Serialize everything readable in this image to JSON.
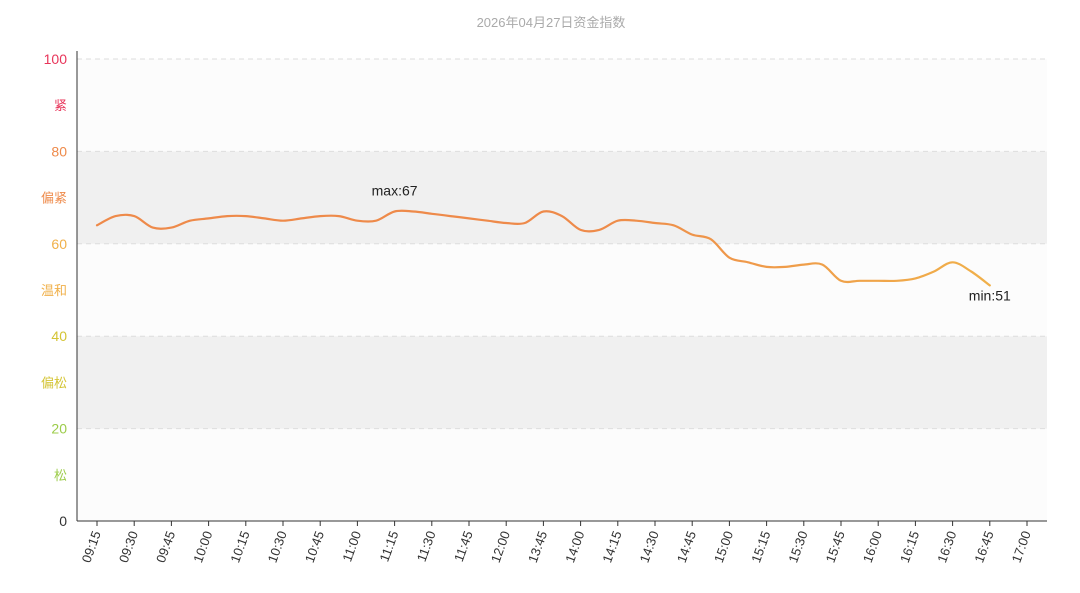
{
  "chart_data": {
    "type": "line",
    "title": "2026年04月27日资金指数",
    "xlabel": "",
    "ylabel": "",
    "ylim": [
      0,
      100
    ],
    "y_ticks": [
      "0",
      "20",
      "40",
      "60",
      "80",
      "100"
    ],
    "y_tick_colors": [
      "#333333",
      "#9ccc4a",
      "#d4c434",
      "#f0b04a",
      "#ee8a4a",
      "#e8355a"
    ],
    "zones": [
      {
        "label": "松",
        "from": 0,
        "to": 20,
        "color": "#9ccc4a",
        "band": "#fcfcfc"
      },
      {
        "label": "偏松",
        "from": 20,
        "to": 40,
        "color": "#d4c434",
        "band": "#f0f0f0"
      },
      {
        "label": "温和",
        "from": 40,
        "to": 60,
        "color": "#f0b04a",
        "band": "#fcfcfc"
      },
      {
        "label": "偏紧",
        "from": 60,
        "to": 80,
        "color": "#ee8a4a",
        "band": "#f0f0f0"
      },
      {
        "label": "紧",
        "from": 80,
        "to": 100,
        "color": "#e8355a",
        "band": "#fcfcfc"
      }
    ],
    "x_ticks": [
      "09:15",
      "09:30",
      "09:45",
      "10:00",
      "10:15",
      "10:30",
      "10:45",
      "11:00",
      "11:15",
      "11:30",
      "11:45",
      "12:00",
      "13:45",
      "14:00",
      "14:15",
      "14:30",
      "14:45",
      "15:00",
      "15:15",
      "15:30",
      "15:45",
      "16:00",
      "16:15",
      "16:30",
      "16:45",
      "17:00"
    ],
    "grid": true,
    "line_colors": [
      "#ee8a4a",
      "#f0b04a"
    ],
    "series": [
      {
        "x": [
          0,
          0.5,
          1,
          1.5,
          2,
          2.5,
          3,
          3.5,
          4,
          4.5,
          5,
          5.5,
          6,
          6.5,
          7,
          7.5,
          8,
          8.5,
          9,
          9.5,
          10,
          10.5,
          11,
          11.5,
          12,
          12.5,
          13,
          13.5,
          14,
          14.5,
          15,
          15.5,
          16,
          16.5,
          17,
          17.5,
          18,
          18.5,
          19,
          19.5,
          20,
          20.5,
          21,
          21.5,
          22,
          22.5,
          23,
          23.5,
          24
        ],
        "values": [
          64,
          66,
          66,
          63.5,
          63.5,
          65,
          65.5,
          66,
          66,
          65.5,
          65,
          65.5,
          66,
          66,
          65,
          65,
          67,
          67,
          66.5,
          66,
          65.5,
          65,
          64.5,
          64.5,
          67,
          66,
          63,
          63,
          65,
          65,
          64.5,
          64,
          62,
          61,
          57,
          56,
          55,
          55,
          55.5,
          55.5,
          52,
          52,
          52,
          52,
          52.5,
          54,
          56,
          54,
          51
        ]
      }
    ],
    "annotations": [
      {
        "label": "max:67",
        "x": 8,
        "y": 67
      },
      {
        "label": "min:51",
        "x": 24,
        "y": 51
      }
    ]
  }
}
